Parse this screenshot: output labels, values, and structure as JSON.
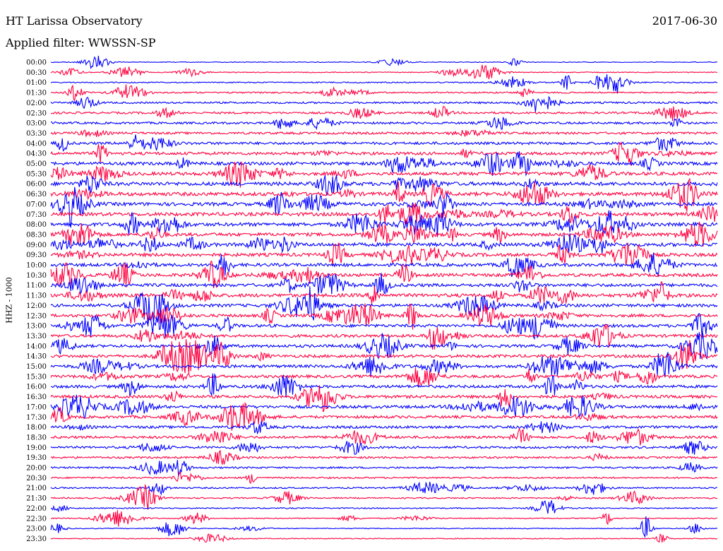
{
  "header": {
    "title": "HT Larissa Observatory",
    "date": "2017-06-30",
    "filter": "Applied filter: WWSSN-SP"
  },
  "chart_data": {
    "type": "line",
    "title": "HT Larissa Observatory",
    "subtitle": "Applied filter: WWSSN-SP",
    "date": "2017-06-30",
    "ylabel": "HHZ - 1000",
    "traces": [
      "00:00",
      "00:30",
      "01:00",
      "01:30",
      "02:00",
      "02:30",
      "03:00",
      "03:30",
      "04:00",
      "04:30",
      "05:00",
      "05:30",
      "06:00",
      "06:30",
      "07:00",
      "07:30",
      "08:00",
      "08:30",
      "09:00",
      "09:30",
      "10:00",
      "10:30",
      "11:00",
      "11:30",
      "12:00",
      "12:30",
      "13:00",
      "13:30",
      "14:00",
      "14:30",
      "15:00",
      "15:30",
      "16:00",
      "16:30",
      "17:00",
      "17:30",
      "18:00",
      "18:30",
      "19:00",
      "19:30",
      "20:00",
      "20:30",
      "21:00",
      "21:30",
      "22:00",
      "22:30",
      "23:00",
      "23:30"
    ],
    "trace_minutes": 30,
    "colors": [
      "#0000ff",
      "#ff0040"
    ],
    "noise_level": [
      0.5,
      0.6,
      0.8,
      1.0,
      1.3,
      1.4,
      1.5,
      1.6,
      1.8,
      2.0,
      2.2,
      2.3,
      2.5,
      2.5,
      2.4,
      2.4,
      2.4,
      2.3,
      2.4,
      2.3,
      2.2,
      2.2,
      2.2,
      2.3,
      2.1,
      2.0,
      2.0,
      2.0,
      2.0,
      2.0,
      2.0,
      2.0,
      2.0,
      2.0,
      2.0,
      1.9,
      1.8,
      1.7,
      1.5,
      1.3,
      1.2,
      1.1,
      1.0,
      0.9,
      0.8,
      0.7,
      0.6,
      0.6
    ],
    "grid": false,
    "legend": "none"
  }
}
